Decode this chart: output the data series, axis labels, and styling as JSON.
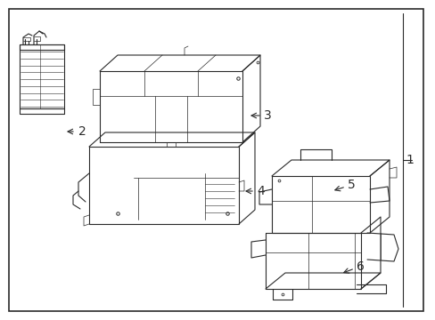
{
  "bg_color": "#ffffff",
  "border_color": "#000000",
  "line_color": "#2a2a2a",
  "label_color": "#000000",
  "fig_width": 4.89,
  "fig_height": 3.6,
  "dpi": 100
}
